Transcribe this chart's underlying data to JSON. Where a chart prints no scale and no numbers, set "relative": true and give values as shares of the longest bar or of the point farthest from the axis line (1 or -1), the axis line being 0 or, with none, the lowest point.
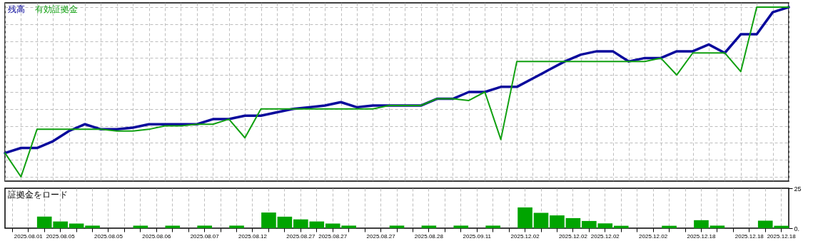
{
  "chart_data": [
    {
      "type": "line",
      "relative": true,
      "grid": true,
      "categories": [
        null,
        null,
        null,
        null,
        null,
        null,
        null,
        null,
        null,
        null,
        null,
        null,
        null,
        null,
        null,
        null,
        null,
        null,
        null,
        null,
        null,
        null,
        null,
        null,
        null,
        null,
        null,
        null,
        null,
        null,
        null,
        null,
        null,
        null,
        null,
        null,
        null,
        null,
        null,
        null,
        null,
        null,
        null,
        null,
        null,
        null,
        null,
        null,
        null,
        null
      ],
      "series": [
        {
          "name": "残高",
          "color": "#0a0a9c",
          "values": [
            0.14,
            0.17,
            0.17,
            0.21,
            0.27,
            0.31,
            0.28,
            0.28,
            0.29,
            0.31,
            0.31,
            0.31,
            0.31,
            0.34,
            0.34,
            0.36,
            0.36,
            0.38,
            0.4,
            0.41,
            0.42,
            0.44,
            0.41,
            0.42,
            0.42,
            0.42,
            0.42,
            0.46,
            0.46,
            0.5,
            0.5,
            0.53,
            0.53,
            0.58,
            0.63,
            0.68,
            0.72,
            0.74,
            0.74,
            0.68,
            0.7,
            0.7,
            0.74,
            0.74,
            0.78,
            0.73,
            0.84,
            0.84,
            0.97,
            1
          ]
        },
        {
          "name": "有効証拠金",
          "color": "#10a010",
          "values": [
            0.14,
            0,
            0.28,
            0.28,
            0.28,
            0.28,
            0.28,
            0.27,
            0.27,
            0.28,
            0.3,
            0.3,
            0.31,
            0.31,
            0.34,
            0.23,
            0.4,
            0.4,
            0.4,
            0.4,
            0.4,
            0.4,
            0.4,
            0.4,
            0.42,
            0.42,
            0.42,
            0.46,
            0.46,
            0.45,
            0.5,
            0.22,
            0.68,
            0.68,
            0.68,
            0.68,
            0.68,
            0.68,
            0.68,
            0.68,
            0.68,
            0.7,
            0.6,
            0.73,
            0.73,
            0.73,
            0.62,
            1,
            1,
            1
          ]
        }
      ]
    },
    {
      "type": "bar",
      "title": "証拠金をロード",
      "grid": "x",
      "color": "#00a400",
      "ylim": [
        0,
        25
      ],
      "yticks": [
        {
          "value": 0,
          "label": "0."
        },
        {
          "value": 25,
          "label": "25"
        }
      ],
      "categories": [
        null,
        "2025.08.01",
        null,
        "2025.08.05",
        null,
        null,
        "2025.08.05",
        null,
        null,
        "2025.08.06",
        null,
        null,
        "2025.08.07",
        null,
        null,
        "2025.08.12",
        null,
        null,
        "2025.08.27",
        null,
        "2025.08.27",
        null,
        null,
        "2025.08.27",
        null,
        null,
        "2025.08.28",
        null,
        null,
        "2025.09.11",
        null,
        null,
        "2025.12.02",
        null,
        null,
        "2025.12.02",
        null,
        "2025.12.02",
        null,
        null,
        "2025.12.02",
        null,
        null,
        "2025.12.18",
        null,
        null,
        "2025.12.18",
        null,
        "2025.12.18"
      ],
      "values": [
        null,
        null,
        7.2,
        4.2,
        2.9,
        1.6,
        null,
        null,
        1.6,
        null,
        1.6,
        null,
        1.6,
        null,
        1.6,
        null,
        9.8,
        7.2,
        5.5,
        4.2,
        2.9,
        1.6,
        null,
        null,
        1.6,
        null,
        1.6,
        null,
        1.6,
        null,
        1.6,
        null,
        13,
        9.6,
        8,
        6.3,
        4.5,
        3,
        1.5,
        null,
        null,
        1.5,
        null,
        5,
        1.6,
        null,
        null,
        4.7,
        1.5
      ]
    }
  ]
}
